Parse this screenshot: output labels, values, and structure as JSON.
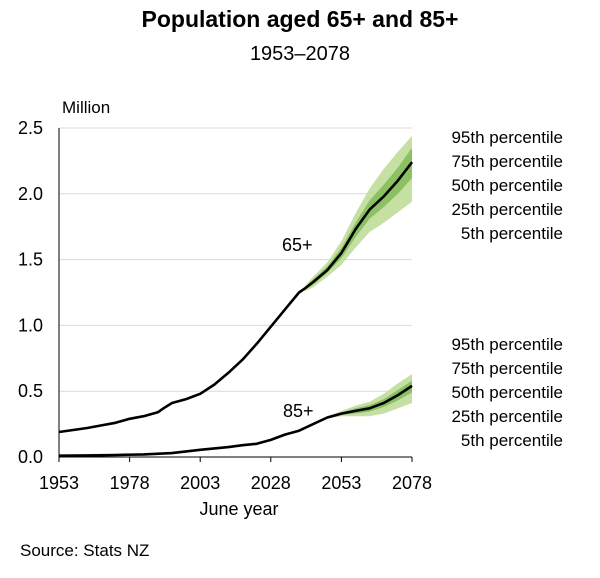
{
  "chart_data": {
    "type": "area",
    "title": "Population aged 65+ and 85+",
    "subtitle": "1953–2078",
    "ylabel": "Million",
    "xlabel": "June year",
    "source": "Source: Stats NZ",
    "xlim": [
      1953,
      2078
    ],
    "ylim": [
      0,
      2.5
    ],
    "x_ticks": [
      "1953",
      "1978",
      "2003",
      "2028",
      "2053",
      "2078"
    ],
    "y_ticks": [
      "0.0",
      "0.5",
      "1.0",
      "1.5",
      "2.0",
      "2.5"
    ],
    "grid": "horizontal",
    "legend_labels": [
      "95th percentile",
      "75th percentile",
      "50th percentile",
      "25th percentile",
      "5th percentile"
    ],
    "colors": {
      "line": "#000000",
      "band_outer": "#c6e0a4",
      "band_inner": "#8cc163",
      "grid": "#d9d9d9"
    },
    "series": [
      {
        "name": "65+",
        "x": [
          1953,
          1958,
          1963,
          1968,
          1973,
          1978,
          1983,
          1988,
          1990,
          1993,
          1998,
          2003,
          2008,
          2013,
          2018,
          2023,
          2028,
          2033,
          2038,
          2040,
          2043,
          2048,
          2053,
          2058,
          2063,
          2068,
          2073,
          2078
        ],
        "p50": [
          0.19,
          0.205,
          0.22,
          0.24,
          0.26,
          0.29,
          0.31,
          0.34,
          0.37,
          0.41,
          0.44,
          0.48,
          0.55,
          0.64,
          0.74,
          0.86,
          0.99,
          1.12,
          1.25,
          1.28,
          1.33,
          1.42,
          1.55,
          1.73,
          1.88,
          1.98,
          2.1,
          2.24
        ],
        "p5": [
          null,
          null,
          null,
          null,
          null,
          null,
          null,
          null,
          null,
          null,
          null,
          null,
          null,
          null,
          null,
          null,
          null,
          null,
          null,
          1.26,
          1.29,
          1.37,
          1.46,
          1.59,
          1.71,
          1.78,
          1.86,
          1.94
        ],
        "p25": [
          null,
          null,
          null,
          null,
          null,
          null,
          null,
          null,
          null,
          null,
          null,
          null,
          null,
          null,
          null,
          null,
          null,
          null,
          null,
          1.27,
          1.31,
          1.4,
          1.51,
          1.67,
          1.81,
          1.9,
          2.0,
          2.12
        ],
        "p75": [
          null,
          null,
          null,
          null,
          null,
          null,
          null,
          null,
          null,
          null,
          null,
          null,
          null,
          null,
          null,
          null,
          null,
          null,
          null,
          1.29,
          1.35,
          1.45,
          1.59,
          1.78,
          1.95,
          2.07,
          2.2,
          2.35
        ],
        "p95": [
          null,
          null,
          null,
          null,
          null,
          null,
          null,
          null,
          null,
          null,
          null,
          null,
          null,
          null,
          null,
          null,
          null,
          null,
          null,
          1.3,
          1.37,
          1.48,
          1.64,
          1.85,
          2.04,
          2.19,
          2.32,
          2.44
        ]
      },
      {
        "name": "85+",
        "x": [
          1953,
          1963,
          1973,
          1983,
          1993,
          2003,
          2013,
          2018,
          2023,
          2028,
          2033,
          2038,
          2043,
          2048,
          2053,
          2058,
          2063,
          2068,
          2073,
          2078
        ],
        "p50": [
          0.01,
          0.012,
          0.015,
          0.02,
          0.03,
          0.055,
          0.075,
          0.09,
          0.1,
          0.13,
          0.17,
          0.2,
          0.25,
          0.3,
          0.33,
          0.35,
          0.37,
          0.41,
          0.47,
          0.54
        ],
        "p5": [
          null,
          null,
          null,
          null,
          null,
          null,
          null,
          null,
          null,
          null,
          null,
          null,
          null,
          0.29,
          0.31,
          0.31,
          0.31,
          0.33,
          0.37,
          0.41
        ],
        "p25": [
          null,
          null,
          null,
          null,
          null,
          null,
          null,
          null,
          null,
          null,
          null,
          null,
          null,
          0.295,
          0.32,
          0.33,
          0.345,
          0.38,
          0.43,
          0.49
        ],
        "p75": [
          null,
          null,
          null,
          null,
          null,
          null,
          null,
          null,
          null,
          null,
          null,
          null,
          null,
          0.305,
          0.34,
          0.37,
          0.395,
          0.44,
          0.51,
          0.58
        ],
        "p95": [
          null,
          null,
          null,
          null,
          null,
          null,
          null,
          null,
          null,
          null,
          null,
          null,
          null,
          0.31,
          0.35,
          0.39,
          0.42,
          0.48,
          0.56,
          0.63
        ]
      }
    ]
  }
}
